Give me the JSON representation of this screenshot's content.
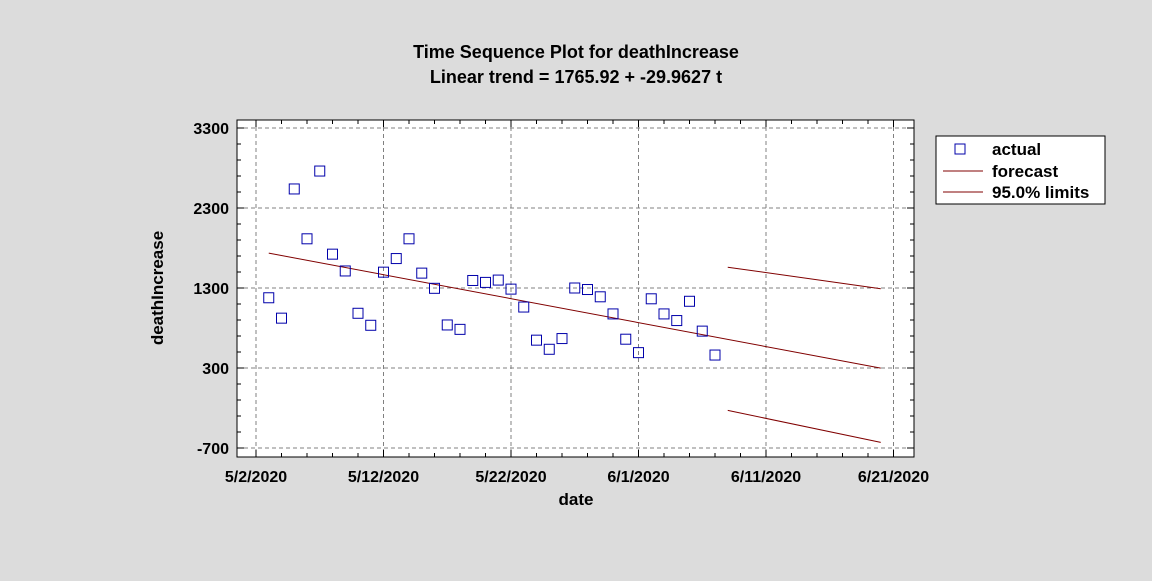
{
  "chart_data": {
    "type": "scatter",
    "title": "Time Sequence Plot for deathIncrease",
    "subtitle": "Linear trend = 1765.92 + -29.9627 t",
    "xlabel": "date",
    "ylabel": "deathIncrease",
    "x_ticks": [
      "5/2/2020",
      "5/12/2020",
      "5/22/2020",
      "6/1/2020",
      "6/11/2020",
      "6/21/2020"
    ],
    "y_ticks": [
      "3300",
      "2300",
      "1300",
      "300",
      "-700"
    ],
    "xlim": [
      "2020-05-02",
      "2020-06-21"
    ],
    "ylim": [
      -700,
      3300
    ],
    "grid": true,
    "legend_position": "right",
    "colors": {
      "actual": "#0000aa",
      "forecast": "#800000",
      "limits": "#800000",
      "background": "#dcdcdc",
      "plot_background": "#ffffff",
      "grid": "#808080"
    },
    "series": [
      {
        "name": "actual",
        "kind": "points",
        "x": [
          "2020-05-03",
          "2020-05-04",
          "2020-05-05",
          "2020-05-06",
          "2020-05-07",
          "2020-05-08",
          "2020-05-09",
          "2020-05-10",
          "2020-05-11",
          "2020-05-12",
          "2020-05-13",
          "2020-05-14",
          "2020-05-15",
          "2020-05-16",
          "2020-05-17",
          "2020-05-18",
          "2020-05-19",
          "2020-05-20",
          "2020-05-21",
          "2020-05-22",
          "2020-05-23",
          "2020-05-24",
          "2020-05-25",
          "2020-05-26",
          "2020-05-27",
          "2020-05-28",
          "2020-05-29",
          "2020-05-30",
          "2020-05-31",
          "2020-06-01",
          "2020-06-02",
          "2020-06-03",
          "2020-06-04",
          "2020-06-05",
          "2020-06-06",
          "2020-06-07"
        ],
        "y": [
          1178,
          923,
          2538,
          1915,
          2762,
          1723,
          1513,
          984,
          834,
          1498,
          1668,
          1915,
          1486,
          1296,
          838,
          783,
          1394,
          1370,
          1399,
          1286,
          1062,
          648,
          534,
          668,
          1300,
          1281,
          1190,
          976,
          660,
          492,
          1165,
          976,
          893,
          1134,
          761,
          462
        ]
      },
      {
        "name": "forecast",
        "kind": "line",
        "x": [
          "2020-05-03",
          "2020-06-20"
        ],
        "y": [
          1736,
          298
        ]
      },
      {
        "name": "95.0% limits",
        "kind": "line",
        "segments": [
          {
            "x": [
              "2020-06-08",
              "2020-06-20"
            ],
            "y": [
              1560,
              1290
            ]
          },
          {
            "x": [
              "2020-06-08",
              "2020-06-20"
            ],
            "y": [
              -230,
              -630
            ]
          }
        ]
      }
    ],
    "legend": [
      {
        "label": "actual",
        "marker": "square"
      },
      {
        "label": "forecast",
        "marker": "line"
      },
      {
        "label": "95.0% limits",
        "marker": "line"
      }
    ]
  }
}
